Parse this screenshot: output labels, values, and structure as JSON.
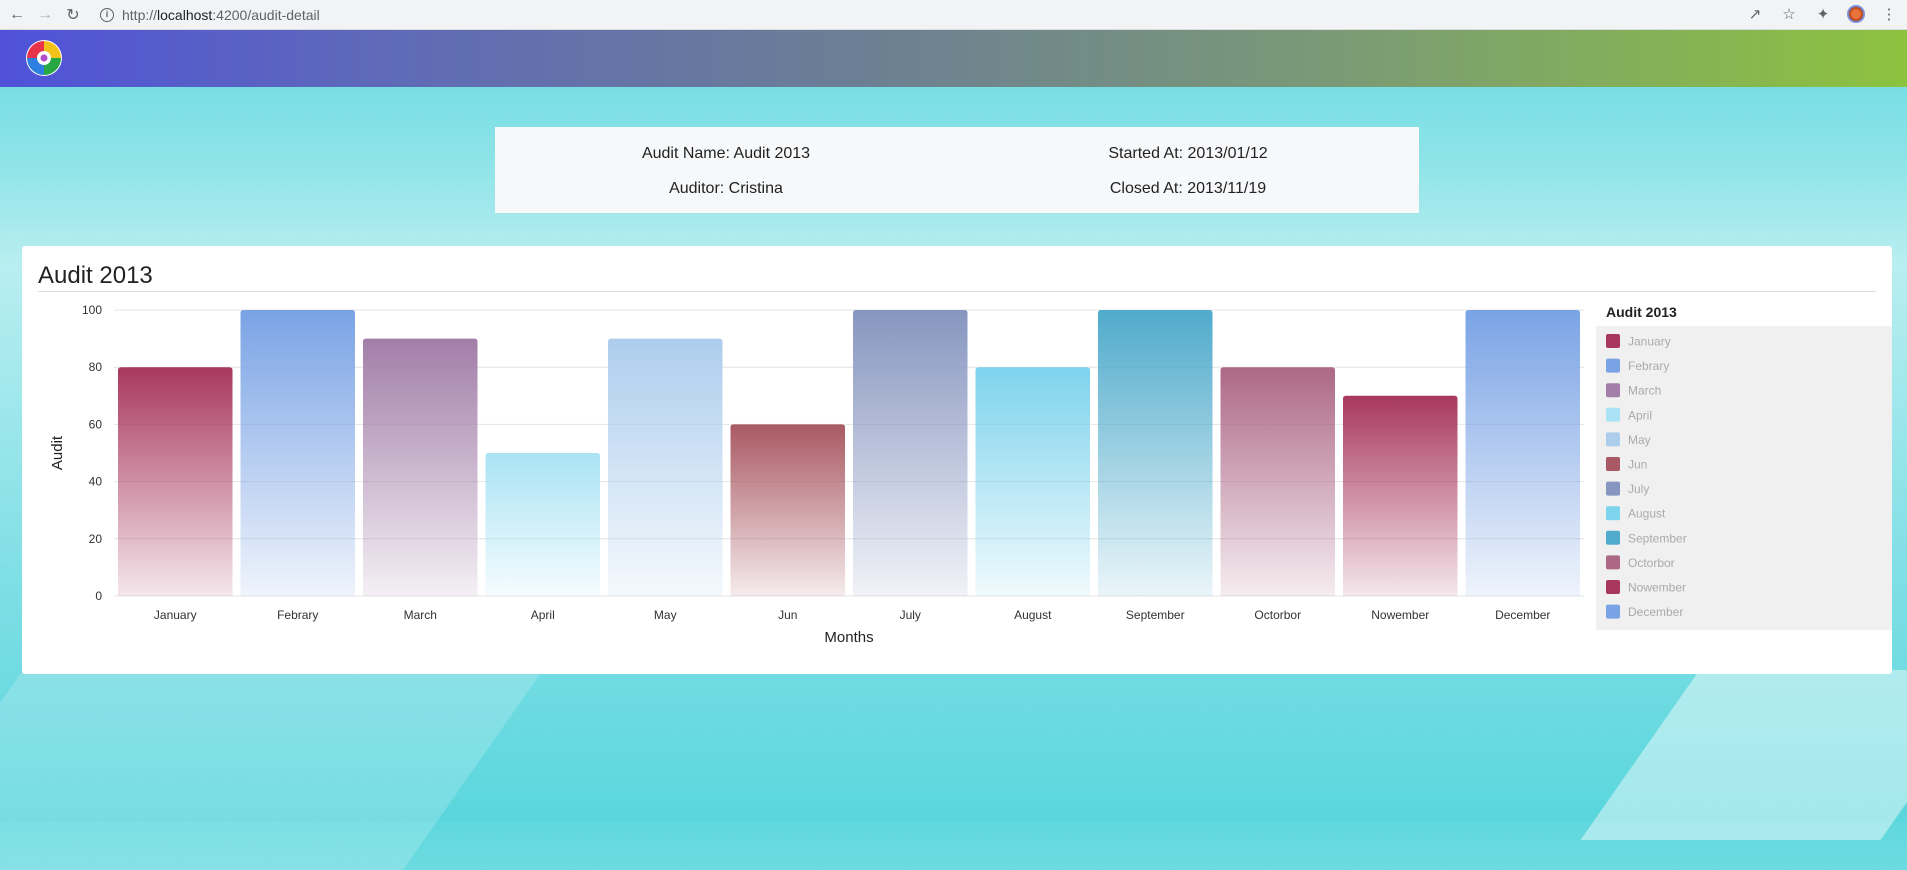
{
  "browser": {
    "url_scheme": "http://",
    "url_host": "localhost",
    "url_path": ":4200/audit-detail"
  },
  "audit": {
    "name_label": "Audit Name: Audit 2013",
    "started_label": "Started At: 2013/01/12",
    "auditor_label": "Auditor: Cristina",
    "closed_label": "Closed At: 2013/11/19"
  },
  "chart_data": {
    "type": "bar",
    "title": "Audit 2013",
    "legend_title": "Audit 2013",
    "legend_position": "right",
    "xlabel": "Months",
    "ylabel": "Audit",
    "ylim": [
      0,
      100
    ],
    "yticks": [
      0,
      20,
      40,
      60,
      80,
      100
    ],
    "grid": true,
    "categories": [
      "January",
      "Febrary",
      "March",
      "April",
      "May",
      "Jun",
      "July",
      "August",
      "September",
      "Octorbor",
      "Nowember",
      "December"
    ],
    "values": [
      80,
      100,
      90,
      50,
      90,
      60,
      100,
      80,
      100,
      80,
      70,
      100
    ],
    "colors": [
      "#a8385d",
      "#7aa3e5",
      "#a27ea8",
      "#aae3f5",
      "#adcded",
      "#a95963",
      "#8796c0",
      "#7ed3ed",
      "#50abcc",
      "#ad6886",
      "#a8385d",
      "#7aa3e5"
    ]
  }
}
